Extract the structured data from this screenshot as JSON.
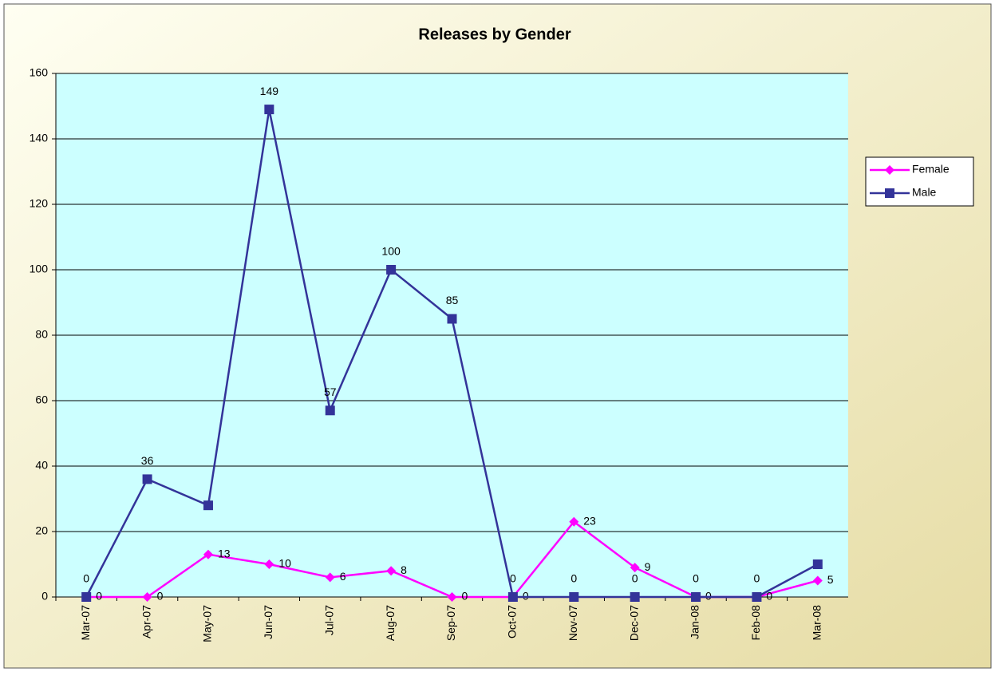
{
  "chart_data": {
    "type": "line",
    "title": "Releases by Gender",
    "categories": [
      "Mar-07",
      "Apr-07",
      "May-07",
      "Jun-07",
      "Jul-07",
      "Aug-07",
      "Sep-07",
      "Oct-07",
      "Nov-07",
      "Dec-07",
      "Jan-08",
      "Feb-08",
      "Mar-08"
    ],
    "series": [
      {
        "name": "Female",
        "color": "#ff00ff",
        "marker": "diamond",
        "values": [
          0,
          0,
          13,
          10,
          6,
          8,
          0,
          0,
          23,
          9,
          0,
          0,
          5
        ],
        "value_labels": [
          "0",
          "0",
          "13",
          "10",
          "6",
          "8",
          "0",
          "0",
          "23",
          "9",
          "0",
          "0",
          "5"
        ]
      },
      {
        "name": "Male",
        "color": "#333399",
        "marker": "square",
        "values": [
          0,
          36,
          28,
          149,
          57,
          100,
          85,
          0,
          0,
          0,
          0,
          0,
          10
        ],
        "value_labels": [
          "0",
          "36",
          null,
          "149",
          "57",
          "100",
          "85",
          "0",
          "0",
          "0",
          "0",
          "0",
          null
        ]
      }
    ],
    "ylim": [
      0,
      160
    ],
    "yticks": [
      0,
      20,
      40,
      60,
      80,
      100,
      120,
      140,
      160
    ],
    "grid": true,
    "legend": "right"
  }
}
